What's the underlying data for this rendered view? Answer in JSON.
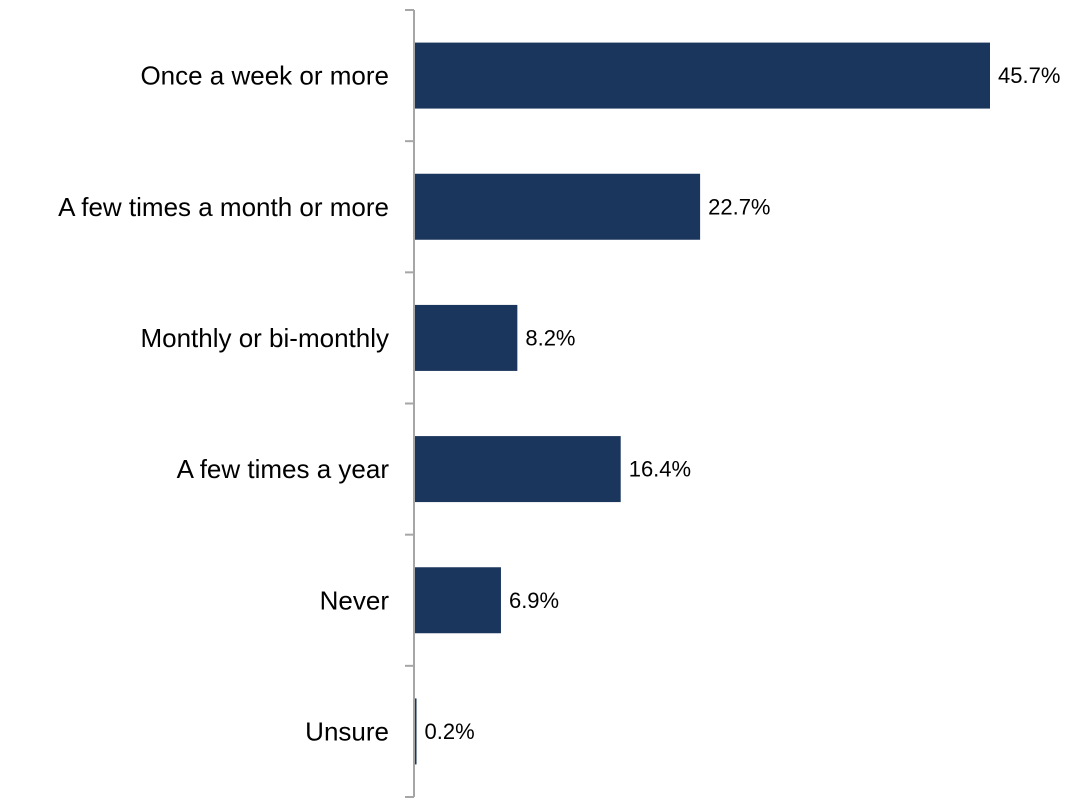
{
  "chart_data": {
    "type": "bar",
    "orientation": "horizontal",
    "categories": [
      "Once a week or more",
      "A few times a month or more",
      "Monthly or bi-monthly",
      "A few times a year",
      "Never",
      "Unsure"
    ],
    "values": [
      45.7,
      22.7,
      8.2,
      16.4,
      6.9,
      0.2
    ],
    "value_labels": [
      "45.7%",
      "22.7%",
      "8.2%",
      "16.4%",
      "6.9%",
      "0.2%"
    ],
    "unit": "%",
    "xlim": [
      0,
      45.7
    ],
    "grid": false,
    "legend": "none",
    "colors": {
      "bar": "#1b365d",
      "axis": "#a6a6a6",
      "text": "#000000"
    }
  }
}
